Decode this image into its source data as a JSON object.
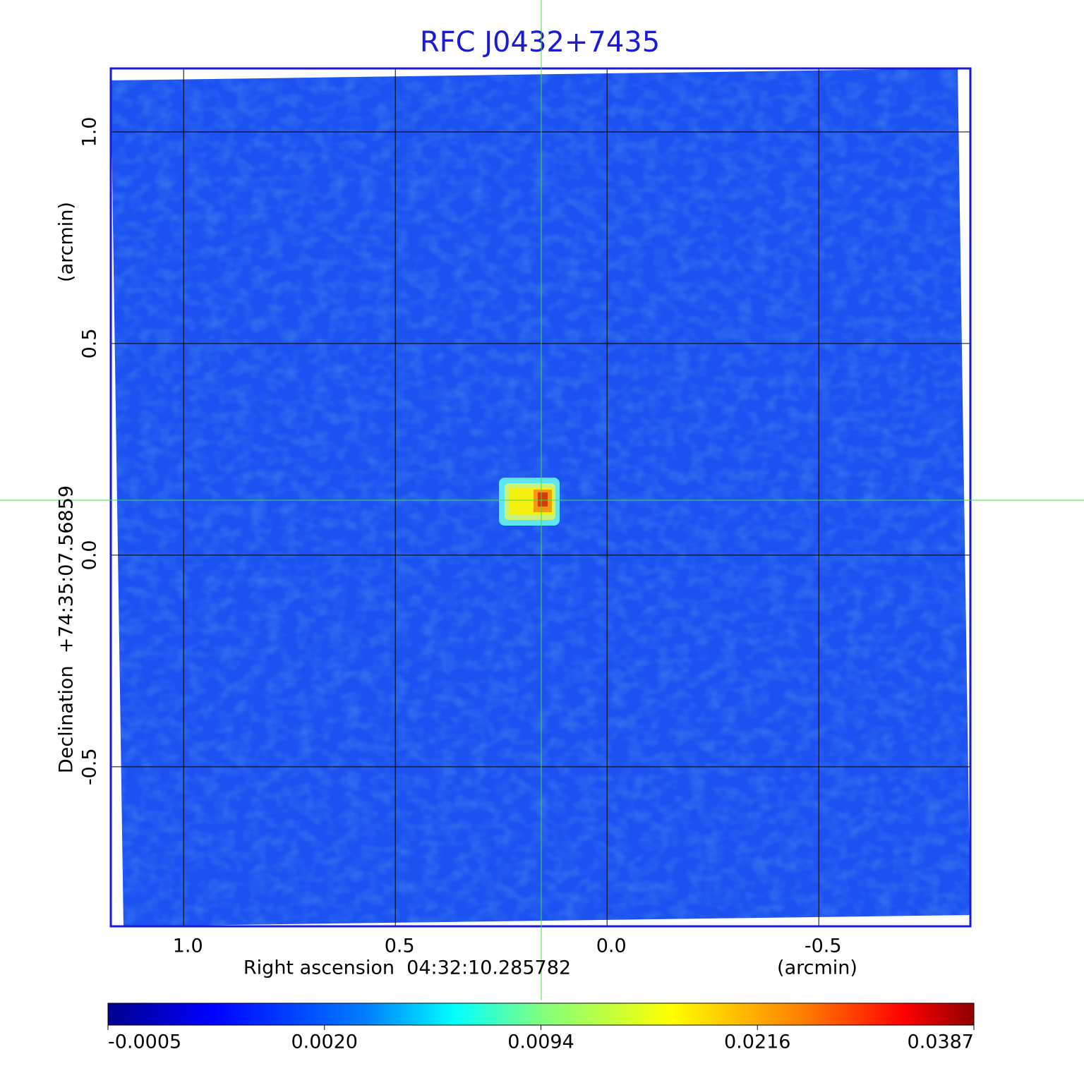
{
  "chart_data": {
    "type": "image",
    "title": "RFC J0432+7435",
    "xlabel": "Right ascension  04:32:10.285782",
    "xunit": "(arcmin)",
    "ylabel": "Declination  +74:35:07.56859",
    "yunit": "(arcmin)",
    "xlim": [
      1.172,
      -0.858
    ],
    "xticks": [
      {
        "value": 1,
        "label": "1.0"
      },
      0.5,
      {
        "value": 0,
        "label": "0.0"
      },
      -0.5
    ],
    "ylim": [
      -0.877,
      1.15
    ],
    "yticks": [
      {
        "value": 1,
        "label": "1.0"
      },
      0.5,
      {
        "value": 0,
        "label": "0.0"
      },
      -0.5
    ],
    "grid": true,
    "colorbar_ticks": [
      -0.0005,
      {
        "value": 0.002,
        "label": "0.0020"
      },
      0.0094,
      0.0216,
      0.0387
    ]
  }
}
